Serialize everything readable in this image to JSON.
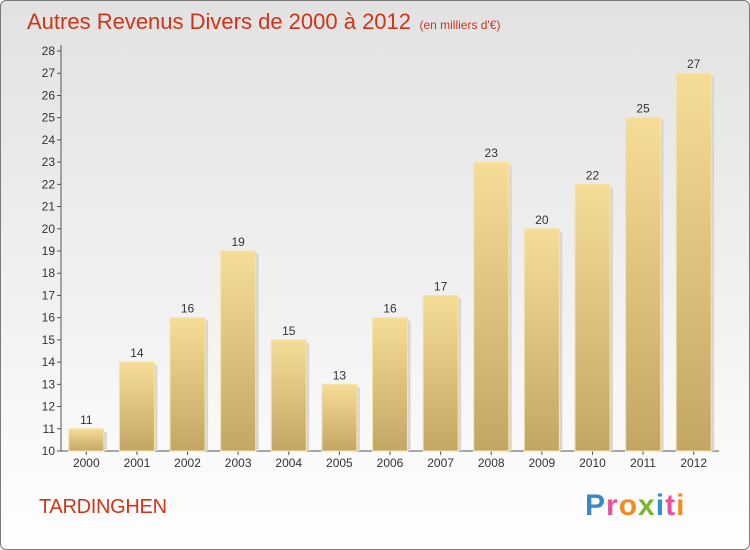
{
  "chart_data": {
    "type": "bar",
    "title": "Autres Revenus Divers de 2000 à 2012",
    "subtitle": "(en milliers d'€)",
    "categories": [
      "2000",
      "2001",
      "2002",
      "2003",
      "2004",
      "2005",
      "2006",
      "2007",
      "2008",
      "2009",
      "2010",
      "2011",
      "2012"
    ],
    "values": [
      11,
      14,
      16,
      19,
      15,
      13,
      16,
      17,
      23,
      20,
      22,
      25,
      27
    ],
    "ylim": [
      10,
      28
    ],
    "yticks": [
      10,
      11,
      12,
      13,
      14,
      15,
      16,
      17,
      18,
      19,
      20,
      21,
      22,
      23,
      24,
      25,
      26,
      27,
      28
    ],
    "xlabel": "",
    "ylabel": "",
    "grid": false,
    "bar_color": "#e2c98a",
    "title_color": "#d03418"
  },
  "location": "TARDINGHEN",
  "brand": {
    "letters": [
      {
        "char": "P",
        "color": "#3a88c8"
      },
      {
        "char": "r",
        "color": "#e94f9a"
      },
      {
        "char": "o",
        "color": "#f28c1c"
      },
      {
        "char": "x",
        "color": "#79b82a"
      },
      {
        "char": "i",
        "color": "#2f8fd4"
      },
      {
        "char": "t",
        "color": "#e94f9a"
      },
      {
        "char": "i",
        "color": "#f28c1c"
      }
    ]
  }
}
